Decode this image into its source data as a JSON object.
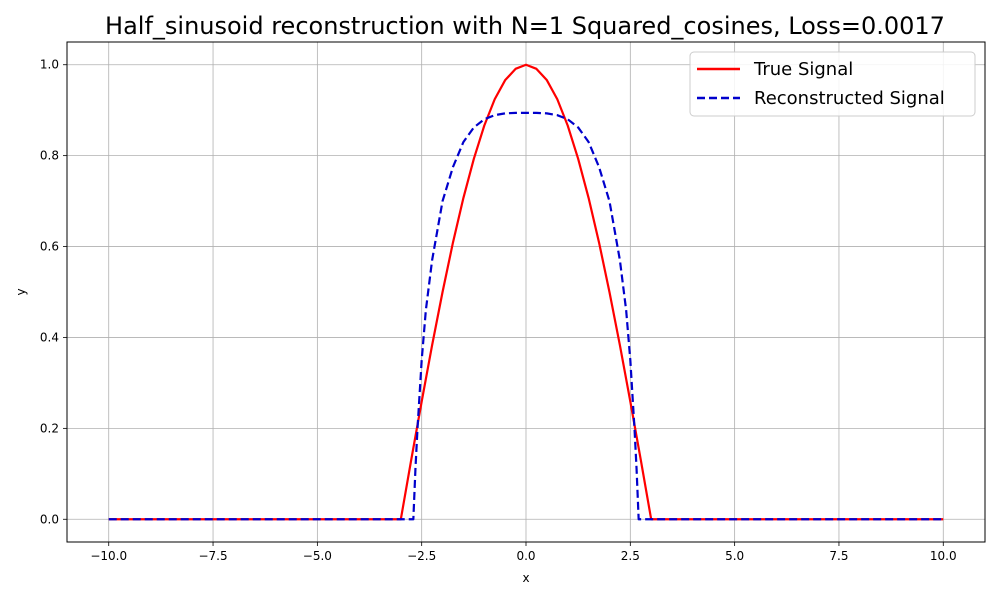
{
  "chart_data": {
    "type": "line",
    "title": "Half_sinusoid reconstruction with N=1 Squared_cosines, Loss=0.0017",
    "xlabel": "x",
    "ylabel": "y",
    "xlim": [
      -11.0,
      11.0
    ],
    "ylim": [
      -0.05,
      1.05
    ],
    "xticks": [
      -10.0,
      -7.5,
      -5.0,
      -2.5,
      0.0,
      2.5,
      5.0,
      7.5,
      10.0
    ],
    "xtick_labels": [
      "−10.0",
      "−7.5",
      "−5.0",
      "−2.5",
      "0.0",
      "2.5",
      "5.0",
      "7.5",
      "10.0"
    ],
    "yticks": [
      0.0,
      0.2,
      0.4,
      0.6,
      0.8,
      1.0
    ],
    "ytick_labels": [
      "0.0",
      "0.2",
      "0.4",
      "0.6",
      "0.8",
      "1.0"
    ],
    "grid": true,
    "legend_position": "top-right",
    "series": [
      {
        "name": "True Signal",
        "color": "#ff0000",
        "style": "solid",
        "x": [
          -10.0,
          -3.0,
          -2.75,
          -2.5,
          -2.25,
          -2.0,
          -1.75,
          -1.5,
          -1.25,
          -1.0,
          -0.75,
          -0.5,
          -0.25,
          0.0,
          0.25,
          0.5,
          0.75,
          1.0,
          1.25,
          1.5,
          1.75,
          2.0,
          2.25,
          2.5,
          2.75,
          3.0,
          10.0
        ],
        "y": [
          0.0,
          0.0,
          0.131,
          0.259,
          0.383,
          0.5,
          0.609,
          0.707,
          0.793,
          0.866,
          0.924,
          0.966,
          0.991,
          1.0,
          0.991,
          0.966,
          0.924,
          0.866,
          0.793,
          0.707,
          0.609,
          0.5,
          0.383,
          0.259,
          0.131,
          0.0,
          0.0
        ]
      },
      {
        "name": "Reconstructed Signal",
        "color": "#0000cc",
        "style": "dashed",
        "x": [
          -10.0,
          -2.7,
          -2.65,
          -2.6,
          -2.5,
          -2.4,
          -2.25,
          -2.0,
          -1.75,
          -1.5,
          -1.25,
          -1.0,
          -0.75,
          -0.5,
          -0.25,
          0.0,
          0.25,
          0.5,
          0.75,
          1.0,
          1.25,
          1.5,
          1.75,
          2.0,
          2.25,
          2.4,
          2.5,
          2.6,
          2.65,
          2.7,
          10.0
        ],
        "y": [
          0.0,
          0.0,
          0.11,
          0.2,
          0.35,
          0.46,
          0.57,
          0.7,
          0.775,
          0.83,
          0.862,
          0.88,
          0.889,
          0.893,
          0.894,
          0.894,
          0.894,
          0.893,
          0.889,
          0.88,
          0.862,
          0.83,
          0.775,
          0.7,
          0.57,
          0.46,
          0.35,
          0.2,
          0.11,
          0.0,
          0.0
        ]
      }
    ]
  }
}
